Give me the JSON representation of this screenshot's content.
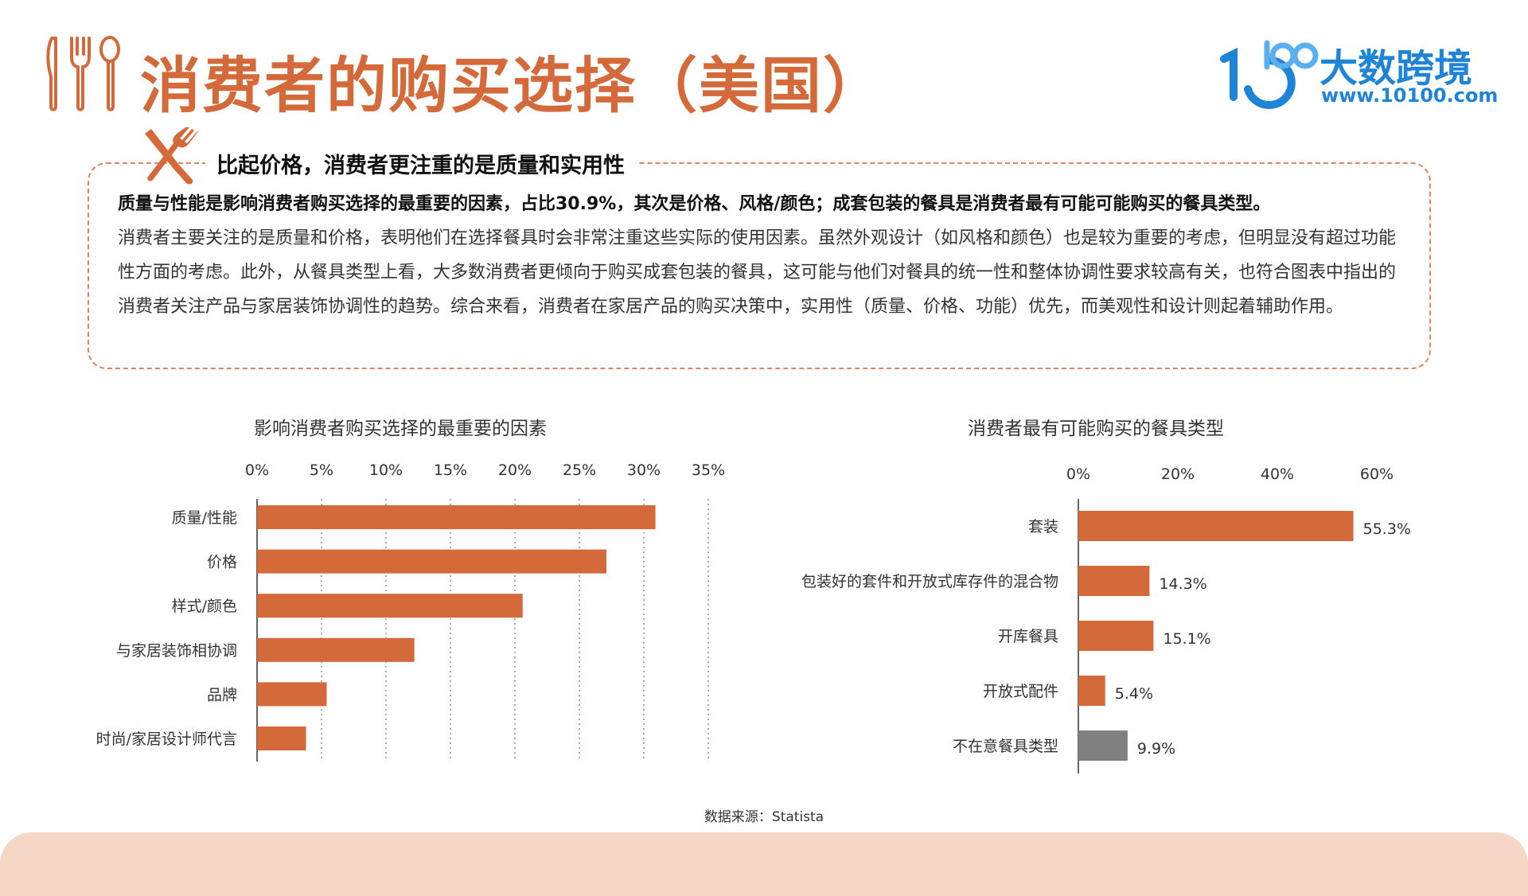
{
  "page_title": "消费者的购买选择（美国）",
  "logo": {
    "mark": "10",
    "mark_super": "100",
    "name": "大数跨境",
    "url": "www.10100.com"
  },
  "summary": {
    "heading": "比起价格，消费者更注重的是质量和实用性",
    "lead": "质量与性能是影响消费者购买选择的最重要的因素，占比30.9%，其次是价格、风格/颜色；成套包装的餐具是消费者最有可能可能购买的餐具类型。",
    "body": "消费者主要关注的是质量和价格，表明他们在选择餐具时会非常注重这些实际的使用因素。虽然外观设计（如风格和颜色）也是较为重要的考虑，但明显没有超过功能性方面的考虑。此外，从餐具类型上看，大多数消费者更倾向于购买成套包装的餐具，这可能与他们对餐具的统一性和整体协调性要求较高有关，也符合图表中指出的消费者关注产品与家居装饰协调性的趋势。综合来看，消费者在家居产品的购买决策中，实用性（质量、价格、功能）优先，而美观性和设计则起着辅助作用。"
  },
  "colors": {
    "accent": "#d4693a",
    "bar": "#d4693a",
    "bar_gray": "#808080",
    "logo": "#1e84d8",
    "footer": "#f6d6c4"
  },
  "chart_data": [
    {
      "type": "bar",
      "orientation": "horizontal",
      "title": "影响消费者购买选择的最重要的因素",
      "categories": [
        "质量/性能",
        "价格",
        "样式/颜色",
        "与家居装饰相协调",
        "品牌",
        "时尚/家居设计师代言"
      ],
      "values": [
        30.9,
        27.1,
        20.6,
        12.2,
        5.4,
        3.8
      ],
      "unit": "%",
      "xlim": [
        0,
        35
      ],
      "ticks": [
        "0%",
        "5%",
        "10%",
        "15%",
        "20%",
        "25%",
        "30%",
        "35%"
      ],
      "tick_values": [
        0,
        5,
        10,
        15,
        20,
        25,
        30,
        35
      ],
      "grid": "vertical-dotted",
      "axis_position": "top",
      "data_labels": false
    },
    {
      "type": "bar",
      "orientation": "horizontal",
      "title": "消费者最有可能购买的餐具类型",
      "categories": [
        "套装",
        "包装好的套件和开放式库存件的混合物",
        "开库餐具",
        "开放式配件",
        "不在意餐具类型"
      ],
      "values": [
        55.3,
        14.3,
        15.1,
        5.4,
        9.9
      ],
      "value_labels": [
        "55.3%",
        "14.3%",
        "15.1%",
        "5.4%",
        "9.9%"
      ],
      "highlight_gray": [
        false,
        false,
        false,
        false,
        true
      ],
      "unit": "%",
      "xlim": [
        0,
        60
      ],
      "ticks": [
        "0%",
        "20%",
        "40%",
        "60%"
      ],
      "tick_values": [
        0,
        20,
        40,
        60
      ],
      "grid": "none",
      "axis_position": "top",
      "data_labels": true
    }
  ],
  "source": "数据来源：Statista"
}
